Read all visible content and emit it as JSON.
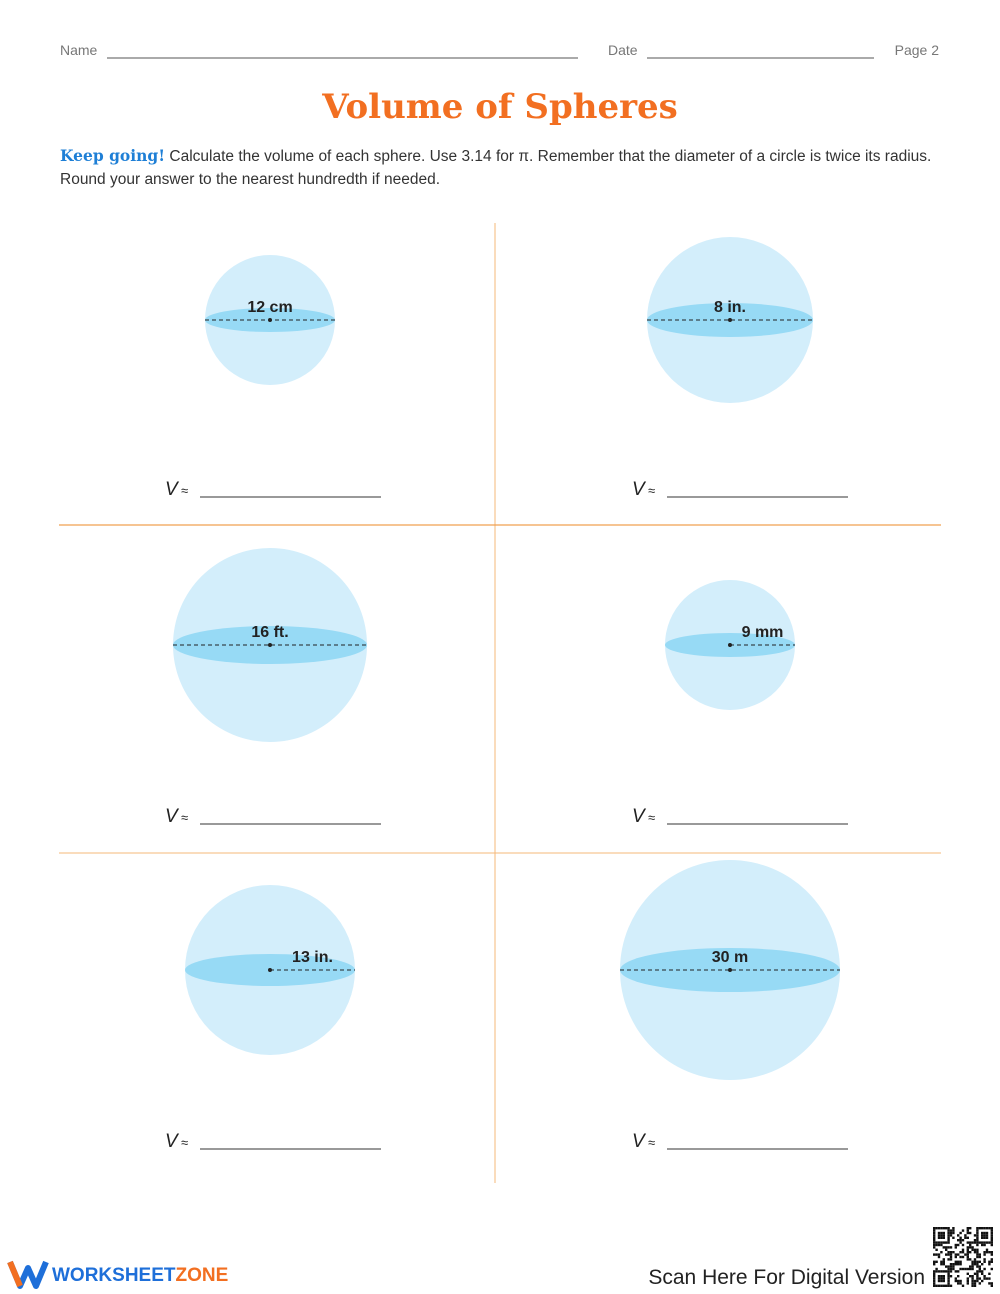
{
  "header": {
    "name_label": "Name",
    "date_label": "Date",
    "page_label": "Page 2"
  },
  "title": "Volume of Spheres",
  "instructions": {
    "lead": "Keep going!",
    "text": "Calculate the volume of each sphere. Use 3.14 for π. Remember that the diameter of a circle is twice its radius. Round your answer to the nearest hundredth if needed."
  },
  "problems": [
    {
      "label": "12 cm",
      "measure": "diameter",
      "answer_variable": "V",
      "answer_symbol": "≈"
    },
    {
      "label": "8 in.",
      "measure": "diameter",
      "answer_variable": "V",
      "answer_symbol": "≈"
    },
    {
      "label": "16 ft.",
      "measure": "diameter",
      "answer_variable": "V",
      "answer_symbol": "≈"
    },
    {
      "label": "9 mm",
      "measure": "radius",
      "answer_variable": "V",
      "answer_symbol": "≈"
    },
    {
      "label": "13 in.",
      "measure": "radius",
      "answer_variable": "V",
      "answer_symbol": "≈"
    },
    {
      "label": "30 m",
      "measure": "diameter",
      "answer_variable": "V",
      "answer_symbol": "≈"
    }
  ],
  "footer": {
    "brand_first": "WORKSHEET",
    "brand_second": "ZONE",
    "scan_text": "Scan Here For Digital Version"
  }
}
